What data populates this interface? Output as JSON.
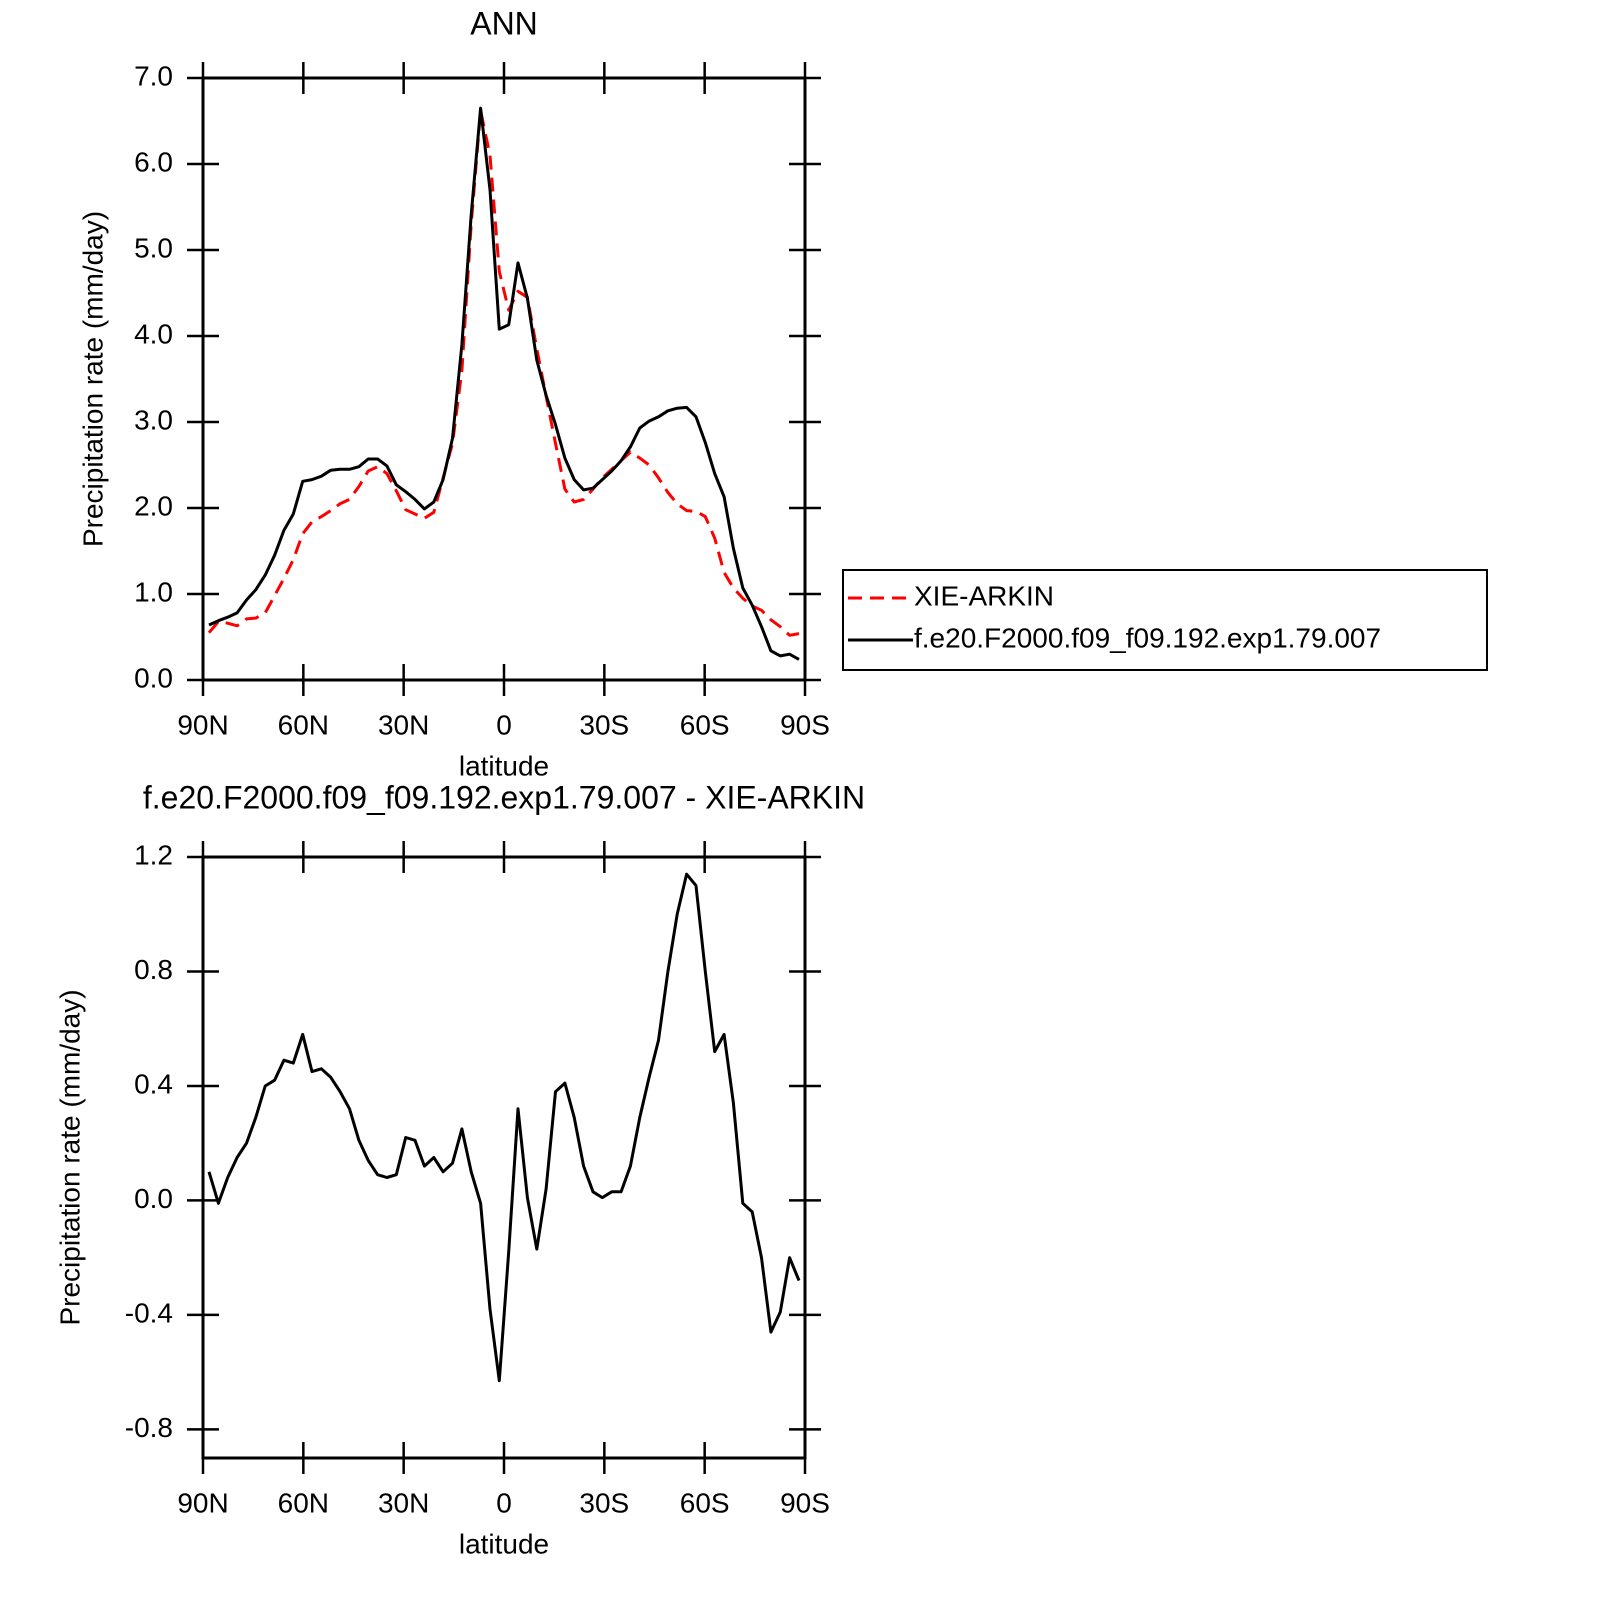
{
  "chart_data": [
    {
      "type": "line",
      "title": "ANN",
      "xlabel": "latitude",
      "ylabel": "Precipitation rate (mm/day)",
      "x": [
        88.2,
        85.4,
        82.6,
        79.8,
        77.0,
        74.2,
        71.4,
        68.6,
        65.8,
        63.0,
        60.2,
        57.4,
        54.6,
        51.8,
        49.0,
        46.2,
        43.4,
        40.6,
        37.8,
        35.0,
        32.2,
        29.4,
        26.6,
        23.8,
        21.0,
        18.2,
        15.4,
        12.6,
        9.8,
        7.0,
        4.2,
        1.4,
        -1.4,
        -4.2,
        -7.0,
        -9.8,
        -12.6,
        -15.4,
        -18.2,
        -21.0,
        -23.8,
        -26.6,
        -29.4,
        -32.2,
        -35.0,
        -37.8,
        -40.6,
        -43.4,
        -46.2,
        -49.0,
        -51.8,
        -54.6,
        -57.4,
        -60.2,
        -63.0,
        -65.8,
        -68.6,
        -71.4,
        -74.2,
        -77.0,
        -79.8,
        -82.6,
        -85.4,
        -88.2
      ],
      "series": [
        {
          "name": "XIE-ARKIN",
          "color": "#ff0000",
          "dash": "dashed",
          "values": [
            0.55,
            0.68,
            0.66,
            0.63,
            0.71,
            0.72,
            0.78,
            0.98,
            1.18,
            1.4,
            1.7,
            1.84,
            1.9,
            1.97,
            2.05,
            2.1,
            2.25,
            2.43,
            2.48,
            2.4,
            2.2,
            1.98,
            1.93,
            1.88,
            1.95,
            2.35,
            2.75,
            3.6,
            5.3,
            6.62,
            6.1,
            4.75,
            4.3,
            4.52,
            4.45,
            3.85,
            3.3,
            2.75,
            2.22,
            2.07,
            2.1,
            2.22,
            2.35,
            2.45,
            2.55,
            2.65,
            2.58,
            2.5,
            2.35,
            2.18,
            2.05,
            1.97,
            1.96,
            1.9,
            1.65,
            1.25,
            1.07,
            0.95,
            0.86,
            0.81,
            0.7,
            0.62,
            0.52,
            0.54
          ]
        },
        {
          "name": "f.e20.F2000.f09_f09.192.exp1.79.007",
          "color": "#000000",
          "dash": "solid",
          "values": [
            0.64,
            0.69,
            0.73,
            0.78,
            0.93,
            1.05,
            1.22,
            1.45,
            1.74,
            1.93,
            2.31,
            2.33,
            2.37,
            2.44,
            2.45,
            2.45,
            2.48,
            2.57,
            2.57,
            2.49,
            2.27,
            2.19,
            2.1,
            1.99,
            2.07,
            2.33,
            2.81,
            3.9,
            5.41,
            6.65,
            5.7,
            4.08,
            4.13,
            4.85,
            4.44,
            3.72,
            3.31,
            2.97,
            2.58,
            2.33,
            2.21,
            2.23,
            2.33,
            2.43,
            2.55,
            2.71,
            2.93,
            3.01,
            3.06,
            3.13,
            3.16,
            3.17,
            3.06,
            2.76,
            2.4,
            2.13,
            1.53,
            1.07,
            0.87,
            0.62,
            0.34,
            0.28,
            0.3,
            0.24
          ]
        }
      ],
      "xlim": [
        90,
        -90
      ],
      "xticks": [
        {
          "value": 90,
          "label": "90N"
        },
        {
          "value": 60,
          "label": "60N"
        },
        {
          "value": 30,
          "label": "30N"
        },
        0,
        {
          "value": -30,
          "label": "30S"
        },
        {
          "value": -60,
          "label": "60S"
        },
        {
          "value": -90,
          "label": "90S"
        }
      ],
      "ylim": [
        0,
        7
      ],
      "yticks": [
        {
          "value": 0,
          "label": "0.0"
        },
        {
          "value": 1,
          "label": "1.0"
        },
        {
          "value": 2,
          "label": "2.0"
        },
        {
          "value": 3,
          "label": "3.0"
        },
        {
          "value": 4,
          "label": "4.0"
        },
        {
          "value": 5,
          "label": "5.0"
        },
        {
          "value": 6,
          "label": "6.0"
        },
        {
          "value": 7,
          "label": "7.0"
        }
      ],
      "legend": "outside-right"
    },
    {
      "type": "line",
      "title": "f.e20.F2000.f09_f09.192.exp1.79.007 - XIE-ARKIN",
      "xlabel": "latitude",
      "ylabel": "Precipitation rate (mm/day)",
      "x": [
        88.2,
        85.4,
        82.6,
        79.8,
        77.0,
        74.2,
        71.4,
        68.6,
        65.8,
        63.0,
        60.2,
        57.4,
        54.6,
        51.8,
        49.0,
        46.2,
        43.4,
        40.6,
        37.8,
        35.0,
        32.2,
        29.4,
        26.6,
        23.8,
        21.0,
        18.2,
        15.4,
        12.6,
        9.8,
        7.0,
        4.2,
        1.4,
        -1.4,
        -4.2,
        -7.0,
        -9.8,
        -12.6,
        -15.4,
        -18.2,
        -21.0,
        -23.8,
        -26.6,
        -29.4,
        -32.2,
        -35.0,
        -37.8,
        -40.6,
        -43.4,
        -46.2,
        -49.0,
        -51.8,
        -54.6,
        -57.4,
        -60.2,
        -63.0,
        -65.8,
        -68.6,
        -71.4,
        -74.2,
        -77.0,
        -79.8,
        -82.6,
        -85.4,
        -88.2
      ],
      "color": "#000000",
      "values": [
        0.1,
        -0.01,
        0.08,
        0.15,
        0.2,
        0.29,
        0.4,
        0.42,
        0.49,
        0.48,
        0.58,
        0.45,
        0.46,
        0.43,
        0.38,
        0.32,
        0.21,
        0.14,
        0.09,
        0.08,
        0.09,
        0.22,
        0.21,
        0.12,
        0.15,
        0.1,
        0.13,
        0.25,
        0.1,
        -0.01,
        -0.38,
        -0.63,
        -0.18,
        0.32,
        0.01,
        -0.17,
        0.04,
        0.38,
        0.41,
        0.29,
        0.12,
        0.03,
        0.01,
        0.03,
        0.03,
        0.12,
        0.29,
        0.43,
        0.56,
        0.8,
        1.0,
        1.14,
        1.1,
        0.8,
        0.52,
        0.58,
        0.34,
        -0.01,
        -0.04,
        -0.2,
        -0.46,
        -0.39,
        -0.2,
        -0.28
      ],
      "xlim": [
        90,
        -90
      ],
      "xticks": [
        {
          "value": 90,
          "label": "90N"
        },
        {
          "value": 60,
          "label": "60N"
        },
        {
          "value": 30,
          "label": "30N"
        },
        0,
        {
          "value": -30,
          "label": "30S"
        },
        {
          "value": -60,
          "label": "60S"
        },
        {
          "value": -90,
          "label": "90S"
        }
      ],
      "ylim": [
        -0.9,
        1.2
      ],
      "yticks": [
        -0.8,
        -0.4,
        {
          "value": 0,
          "label": "0.0"
        },
        0.4,
        0.8,
        1.2
      ]
    }
  ]
}
